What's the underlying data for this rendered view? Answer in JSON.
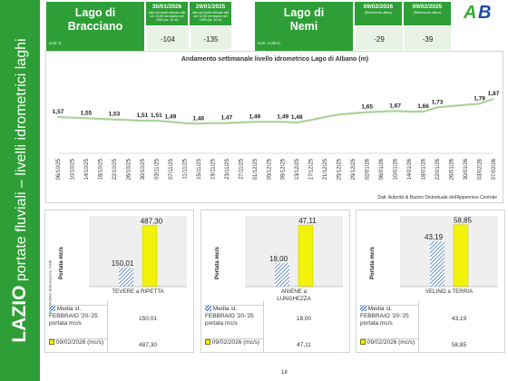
{
  "side_title": {
    "region": "LAZIO",
    "subtitle": "portate fluviali – livelli idrometrici laghi"
  },
  "lakes": [
    {
      "name_line1": "Lago di",
      "name_line2": "Bracciano",
      "source": "Dati: B",
      "dates": [
        {
          "date": "30/01/2026",
          "sub": "dato sul livello rilevato\nalle ore 14:05 nel bacino\nnel 1990 (ca. 16 m)"
        },
        {
          "date": "29/01/2025",
          "sub": "dato sul livello rilevato\nalle ore 14:05 nel bacino\nnel 1990 (ca. 16 m)"
        }
      ],
      "values": [
        "-104",
        "-135"
      ]
    },
    {
      "name_line1": "Lago di",
      "name_line2": "Nemi",
      "source": "Dati: AUBAC",
      "dates": [
        {
          "date": "09/02/2026",
          "sub": "(Riferimento ultimo)"
        },
        {
          "date": "09/02/2025",
          "sub": "(Riferimento ultimo)"
        }
      ],
      "values": [
        "-29",
        "-39"
      ]
    }
  ],
  "logo": {
    "text": "AB",
    "color_green": "#3aaa35",
    "color_blue": "#1f4e9c"
  },
  "chart_data": {
    "type": "line",
    "title": "Andamento settimanale livello idrometrico Lago di Albano (m)",
    "x": [
      "06/10/25",
      "10/10/25",
      "14/10/25",
      "18/10/25",
      "22/10/25",
      "26/10/25",
      "30/10/25",
      "03/11/25",
      "07/11/25",
      "11/11/25",
      "15/11/25",
      "19/11/25",
      "23/11/25",
      "27/11/25",
      "01/12/25",
      "05/12/25",
      "09/12/25",
      "13/12/25",
      "17/12/25",
      "21/12/25",
      "25/12/25",
      "29/12/25",
      "02/01/26",
      "06/01/26",
      "10/01/26",
      "14/01/26",
      "18/01/26",
      "22/01/26",
      "26/01/26",
      "30/01/26",
      "03/02/26",
      "07/02/26"
    ],
    "series": [
      {
        "values": [
          1.57,
          1.56,
          1.55,
          1.54,
          1.53,
          1.52,
          1.51,
          1.51,
          1.49,
          1.47,
          1.46,
          1.47,
          1.47,
          1.48,
          1.49,
          1.49,
          1.49,
          1.48,
          1.52,
          1.57,
          1.61,
          1.63,
          1.65,
          1.66,
          1.67,
          1.66,
          1.66,
          1.73,
          1.75,
          1.77,
          1.79,
          1.87
        ]
      }
    ],
    "data_labels": [
      {
        "i": 0,
        "text": "1,57"
      },
      {
        "i": 2,
        "text": "1,55"
      },
      {
        "i": 4,
        "text": "1,53"
      },
      {
        "i": 6,
        "text": "1,51"
      },
      {
        "i": 7,
        "text": "1,51"
      },
      {
        "i": 8,
        "text": "1,49"
      },
      {
        "i": 10,
        "text": "1,46"
      },
      {
        "i": 12,
        "text": "1,47"
      },
      {
        "i": 14,
        "text": "1,49"
      },
      {
        "i": 16,
        "text": "1,49"
      },
      {
        "i": 17,
        "text": "1,48"
      },
      {
        "i": 22,
        "text": "1,65"
      },
      {
        "i": 24,
        "text": "1,67"
      },
      {
        "i": 26,
        "text": "1,66"
      },
      {
        "i": 27,
        "text": "1,73"
      },
      {
        "i": 30,
        "text": "1,79"
      },
      {
        "i": 31,
        "text": "1,87"
      }
    ],
    "ylim": [
      1.0,
      2.2
    ],
    "grid": false,
    "line_color": "#a9d39a",
    "source": "Dati: Autorità di Bacino Distrettuale dell'Appennino Centrale"
  },
  "panels": [
    {
      "ylabel": "Portata mc/s",
      "category_line1": "TEVERE a RIPETTA",
      "category_line2": "",
      "values": [
        150.01,
        487.3
      ],
      "labels": [
        "150,01",
        "487,30"
      ],
      "ymax": 520,
      "source_note": "Dati: AUBAC\nElaborazione: ANBI",
      "rows": [
        {
          "label": "Media st. FEBBRAIO '20-'25 portata mc/s",
          "value": "150,01"
        },
        {
          "label": "09/02/2026 (mc/s)",
          "value": "487,30"
        }
      ]
    },
    {
      "ylabel": "Portata mc/s",
      "category_line1": "ANIENE a",
      "category_line2": "LUNGHEZZA",
      "values": [
        18.0,
        47.11
      ],
      "labels": [
        "18,00",
        "47,11"
      ],
      "ymax": 50,
      "source_note": "",
      "rows": [
        {
          "label": "Media st. FEBBRAIO '20-'25 portata mc/s",
          "value": "18,00"
        },
        {
          "label": "09/02/2026 (mc/s)",
          "value": "47,11"
        }
      ]
    },
    {
      "ylabel": "Portata mc/s",
      "category_line1": "VELINO a TERRIA",
      "category_line2": "",
      "values": [
        43.19,
        58.85
      ],
      "labels": [
        "43,19",
        "58,85"
      ],
      "ymax": 62,
      "source_note": "",
      "rows": [
        {
          "label": "Media st. FEBBRAIO '20-'25 portata mc/s",
          "value": "43,19"
        },
        {
          "label": "09/02/2026 (mc/s)",
          "value": "58,85"
        }
      ]
    }
  ],
  "colors": {
    "green": "#2e9f36",
    "hatch": "#2a65b5",
    "yellow": "#f2f20a"
  },
  "page_number": "18"
}
